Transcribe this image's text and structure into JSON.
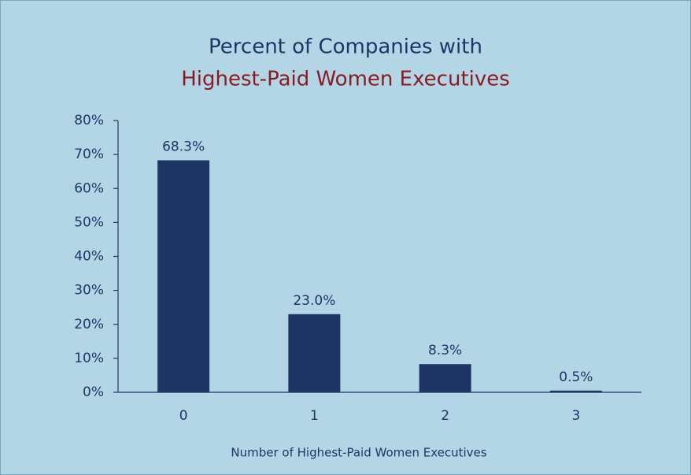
{
  "chart_data": {
    "type": "bar",
    "title": "Percent of Companies with",
    "subtitle": "Highest-Paid Women Executives",
    "x_label": "Number of Highest-Paid Women Executives",
    "categories": [
      "0",
      "1",
      "2",
      "3"
    ],
    "values": [
      68.3,
      23.0,
      8.3,
      0.5
    ],
    "value_labels": [
      "68.3%",
      "23.0%",
      "8.3%",
      "0.5%"
    ],
    "color": "#1d3666",
    "ylim": [
      0,
      80
    ],
    "yticks": [
      {
        "value": 0,
        "label": "0%"
      },
      {
        "value": 10,
        "label": "10%"
      },
      {
        "value": 20,
        "label": "20%"
      },
      {
        "value": 30,
        "label": "30%"
      },
      {
        "value": 40,
        "label": "40%"
      },
      {
        "value": 50,
        "label": "50%"
      },
      {
        "value": 60,
        "label": "60%"
      },
      {
        "value": 70,
        "label": "70%"
      },
      {
        "value": 80,
        "label": "80%"
      }
    ],
    "grid": false
  }
}
